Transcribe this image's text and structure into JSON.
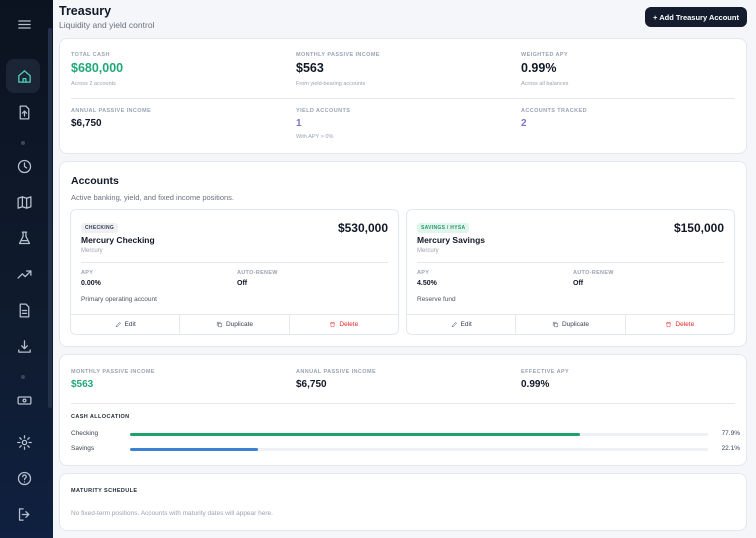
{
  "header": {
    "title": "Treasury",
    "subtitle": "Liquidity and yield control",
    "add_button": "+ Add Treasury Account"
  },
  "sidebar": {
    "items": [
      {
        "icon": "home-icon",
        "active": true
      },
      {
        "icon": "upload-icon"
      },
      {
        "icon": "clock-icon"
      },
      {
        "icon": "map-icon"
      },
      {
        "icon": "flask-icon"
      },
      {
        "icon": "trending-up-icon"
      },
      {
        "icon": "document-icon"
      },
      {
        "icon": "download-icon"
      },
      {
        "icon": "cash-icon"
      },
      {
        "icon": "gear-icon"
      },
      {
        "icon": "help-icon"
      },
      {
        "icon": "logout-icon"
      }
    ]
  },
  "summary": {
    "total_cash": {
      "label": "TOTAL CASH",
      "value": "$680,000",
      "sub": "Across 2 accounts"
    },
    "monthly_income": {
      "label": "MONTHLY PASSIVE INCOME",
      "value": "$563",
      "sub": "From yield-bearing accounts"
    },
    "weighted_apy": {
      "label": "WEIGHTED APY",
      "value": "0.99%",
      "sub": "Across all balances"
    },
    "annual_income": {
      "label": "ANNUAL PASSIVE INCOME",
      "value": "$6,750"
    },
    "yield_accounts": {
      "label": "YIELD ACCOUNTS",
      "value": "1",
      "sub": "With APY > 0%"
    },
    "accounts_tracked": {
      "label": "ACCOUNTS TRACKED",
      "value": "2"
    }
  },
  "accounts_section": {
    "title": "Accounts",
    "subtitle": "Active banking, yield, and fixed income positions.",
    "apy_label": "APY",
    "renew_label": "AUTO-RENEW",
    "edit_label": "Edit",
    "duplicate_label": "Duplicate",
    "delete_label": "Delete",
    "accounts": [
      {
        "badge": "CHECKING",
        "name": "Mercury Checking",
        "institution": "Mercury",
        "balance": "$530,000",
        "apy": "0.00%",
        "auto_renew": "Off",
        "note": "Primary operating account"
      },
      {
        "badge": "SAVINGS / HYSA",
        "name": "Mercury Savings",
        "institution": "Mercury",
        "balance": "$150,000",
        "apy": "4.50%",
        "auto_renew": "Off",
        "note": "Reserve fund"
      }
    ]
  },
  "income": {
    "monthly": {
      "label": "MONTHLY PASSIVE INCOME",
      "value": "$563"
    },
    "annual": {
      "label": "ANNUAL PASSIVE INCOME",
      "value": "$6,750"
    },
    "effective_apy": {
      "label": "EFFECTIVE APY",
      "value": "0.99%"
    },
    "allocation_title": "CASH ALLOCATION",
    "allocation": [
      {
        "name": "Checking",
        "percent_label": "77.9%",
        "fraction": 0.779,
        "color": "#22a06b"
      },
      {
        "name": "Savings",
        "percent_label": "22.1%",
        "fraction": 0.221,
        "color": "#3b82d6"
      }
    ]
  },
  "maturity": {
    "title": "MATURITY SCHEDULE",
    "empty": "No fixed-term positions. Accounts with maturity dates will appear here."
  }
}
